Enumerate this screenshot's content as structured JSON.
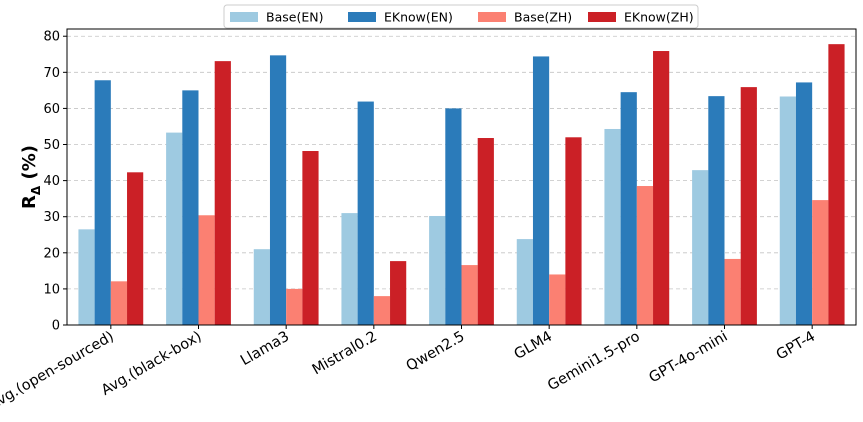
{
  "chart_data": {
    "type": "bar",
    "categories": [
      "Avg.(open-sourced)",
      "Avg.(black-box)",
      "Llama3",
      "Mistral0.2",
      "Qwen2.5",
      "GLM4",
      "Gemini1.5-pro",
      "GPT-4o-mini",
      "GPT-4"
    ],
    "series": [
      {
        "name": "Base(EN)",
        "color": "#9ecae1",
        "values": [
          26.5,
          53.3,
          21.0,
          31.0,
          30.2,
          23.8,
          54.3,
          42.9,
          63.3
        ]
      },
      {
        "name": "EKnow(EN)",
        "color": "#2b7bba",
        "values": [
          67.8,
          65.0,
          74.7,
          61.9,
          60.0,
          74.4,
          64.5,
          63.4,
          67.2
        ]
      },
      {
        "name": "Base(ZH)",
        "color": "#fb8072",
        "values": [
          12.1,
          30.4,
          10.0,
          8.0,
          16.6,
          14.0,
          38.5,
          18.3,
          34.6
        ]
      },
      {
        "name": "EKnow(ZH)",
        "color": "#cb2026",
        "values": [
          42.3,
          73.1,
          48.2,
          17.7,
          51.8,
          52.0,
          75.9,
          65.9,
          77.8
        ]
      }
    ],
    "xlabel": "",
    "ylabel_main": "R",
    "ylabel_sub": "Δ",
    "ylabel_suffix": " (%)",
    "ylim": [
      0,
      82
    ],
    "yticks": [
      0,
      10,
      20,
      30,
      40,
      50,
      60,
      70,
      80
    ],
    "grid": true,
    "legend_position": "top-center"
  }
}
